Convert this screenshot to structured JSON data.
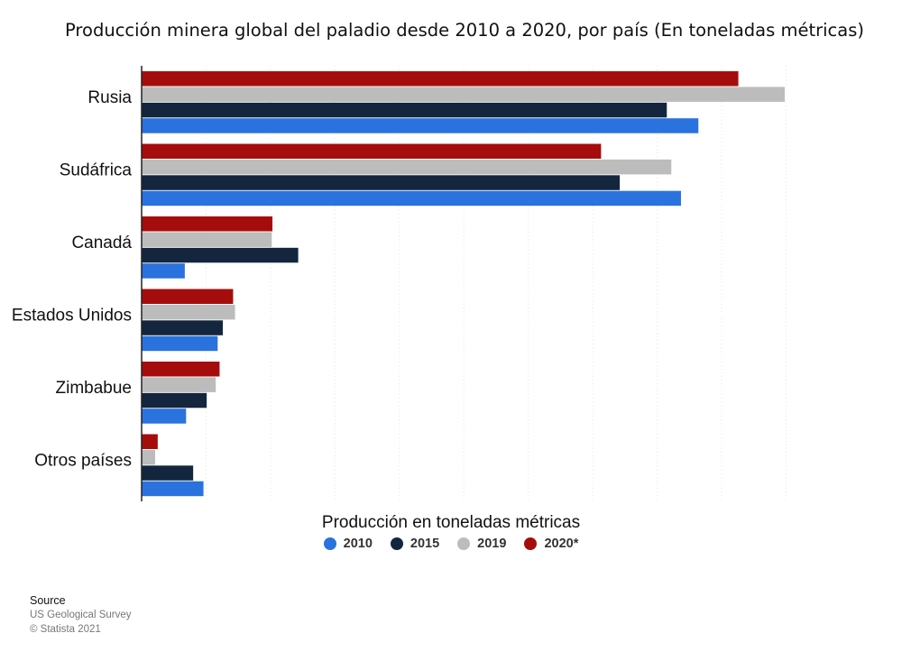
{
  "chart_data": {
    "type": "bar",
    "orientation": "horizontal",
    "title": "Producción minera global del paladio desde 2010 a 2020, por país (En toneladas métricas)",
    "xlabel": "Producción en toneladas métricas",
    "ylabel": "",
    "xlim": [
      0,
      100
    ],
    "grid": true,
    "legend_placement": "bottom-center",
    "categories": [
      "Rusia",
      "Sudáfrica",
      "Canadá",
      "Estados Unidos",
      "Zimbabue",
      "Otros países"
    ],
    "series": [
      {
        "name": "2020*",
        "color": "#a50d0d",
        "values": [
          92.6,
          71.3,
          20.3,
          14.2,
          12.1,
          2.5
        ]
      },
      {
        "name": "2019",
        "color": "#bcbcbc",
        "values": [
          99.8,
          82.2,
          20.2,
          14.5,
          11.5,
          2.1
        ]
      },
      {
        "name": "2015",
        "color": "#13263e",
        "values": [
          81.5,
          74.2,
          24.3,
          12.6,
          10.1,
          8.0
        ]
      },
      {
        "name": "2010",
        "color": "#2a72dd",
        "values": [
          86.4,
          83.7,
          6.7,
          11.8,
          6.9,
          9.6
        ]
      }
    ],
    "legend_order": [
      "2010",
      "2015",
      "2019",
      "2020*"
    ]
  },
  "legend": {
    "title": "Producción en toneladas métricas",
    "items": [
      {
        "label": "2010",
        "color": "#2a72dd"
      },
      {
        "label": "2015",
        "color": "#13263e"
      },
      {
        "label": "2019",
        "color": "#bcbcbc"
      },
      {
        "label": "2020*",
        "color": "#a50d0d"
      }
    ]
  },
  "source": {
    "title": "Source",
    "line1": "US Geological Survey",
    "line2": "© Statista 2021"
  }
}
